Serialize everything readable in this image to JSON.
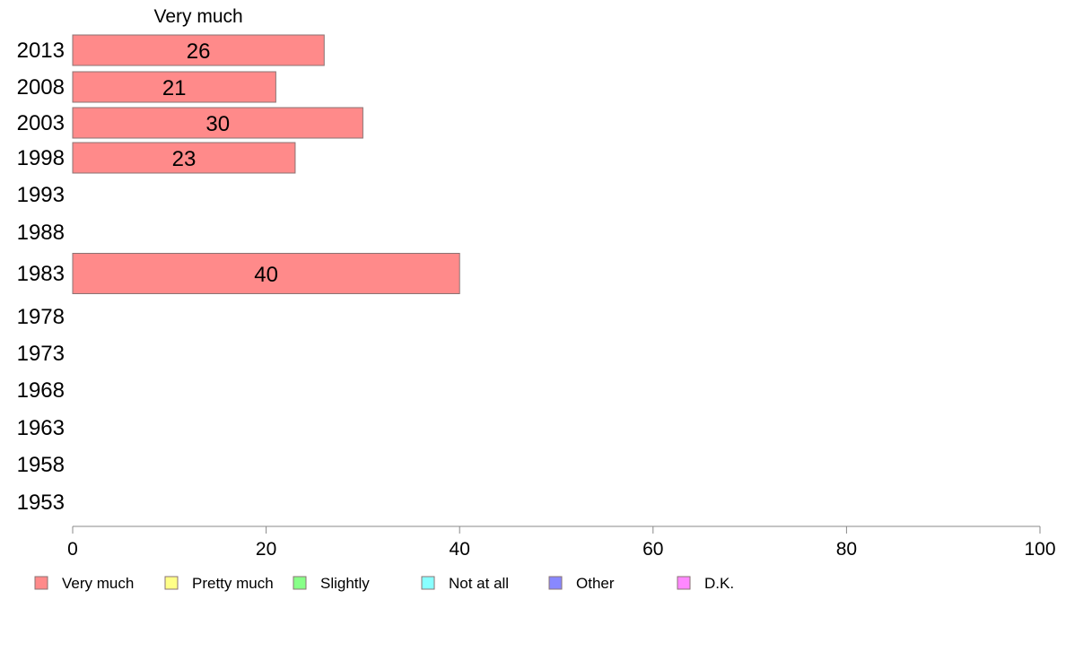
{
  "chart_data": {
    "type": "bar",
    "orientation": "horizontal",
    "stacked": true,
    "column_header": "Very much",
    "categories": [
      "2013",
      "2008",
      "2003",
      "1998",
      "1993",
      "1988",
      "1983",
      "1978",
      "1973",
      "1968",
      "1963",
      "1958",
      "1953"
    ],
    "series": [
      {
        "name": "Very much",
        "color": "#ff8a8a",
        "values": [
          26,
          21,
          30,
          23,
          null,
          null,
          40,
          null,
          null,
          null,
          null,
          null,
          null
        ]
      },
      {
        "name": "Pretty much",
        "color": "#ffff88",
        "values": [
          null,
          null,
          null,
          null,
          null,
          null,
          null,
          null,
          null,
          null,
          null,
          null,
          null
        ]
      },
      {
        "name": "Slightly",
        "color": "#88ff88",
        "values": [
          null,
          null,
          null,
          null,
          null,
          null,
          null,
          null,
          null,
          null,
          null,
          null,
          null
        ]
      },
      {
        "name": "Not at all",
        "color": "#88ffff",
        "values": [
          null,
          null,
          null,
          null,
          null,
          null,
          null,
          null,
          null,
          null,
          null,
          null,
          null
        ]
      },
      {
        "name": "Other",
        "color": "#8888ff",
        "values": [
          null,
          null,
          null,
          null,
          null,
          null,
          null,
          null,
          null,
          null,
          null,
          null,
          null
        ]
      },
      {
        "name": "D.K.",
        "color": "#ff88ff",
        "values": [
          null,
          null,
          null,
          null,
          null,
          null,
          null,
          null,
          null,
          null,
          null,
          null,
          null
        ]
      }
    ],
    "xlim": [
      0,
      100
    ],
    "xticks": [
      0,
      20,
      40,
      60,
      80,
      100
    ],
    "grid": false,
    "legend_position": "bottom"
  }
}
